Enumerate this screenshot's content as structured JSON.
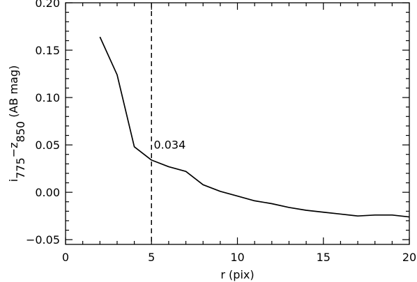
{
  "chart_data": {
    "type": "line",
    "title": "",
    "xlabel": "r (pix)",
    "ylabel": {
      "base": "i",
      "sub1": "775",
      "mid": "−z",
      "sub2": "850",
      "unit": " (AB mag)"
    },
    "xlim": [
      0,
      20
    ],
    "ylim": [
      -0.055,
      0.2
    ],
    "x_major_ticks": [
      0,
      5,
      10,
      15,
      20
    ],
    "x_tick_labels": [
      "0",
      "5",
      "10",
      "15",
      "20"
    ],
    "x_minor_step": 1,
    "y_major_ticks": [
      -0.05,
      0.0,
      0.05,
      0.1,
      0.15,
      0.2
    ],
    "y_tick_labels": [
      "−0.05",
      "0.00",
      "0.05",
      "0.10",
      "0.15",
      "0.20"
    ],
    "y_minor_step": 0.01,
    "grid": false,
    "series": [
      {
        "x": [
          2,
          3,
          4,
          5,
          6,
          7,
          8,
          9,
          10,
          11,
          12,
          13,
          14,
          15,
          16,
          17,
          18,
          19,
          20
        ],
        "y": [
          0.164,
          0.124,
          0.048,
          0.034,
          0.027,
          0.022,
          0.008,
          0.001,
          -0.004,
          -0.009,
          -0.012,
          -0.016,
          -0.019,
          -0.021,
          -0.023,
          -0.025,
          -0.024,
          -0.024,
          -0.026
        ],
        "color": "#000000"
      }
    ],
    "vertical_line": {
      "x": 5,
      "style": "dashed",
      "color": "#000000"
    },
    "annotations": [
      {
        "text": "0.034",
        "x": 5.05,
        "y": 0.0505
      }
    ]
  }
}
